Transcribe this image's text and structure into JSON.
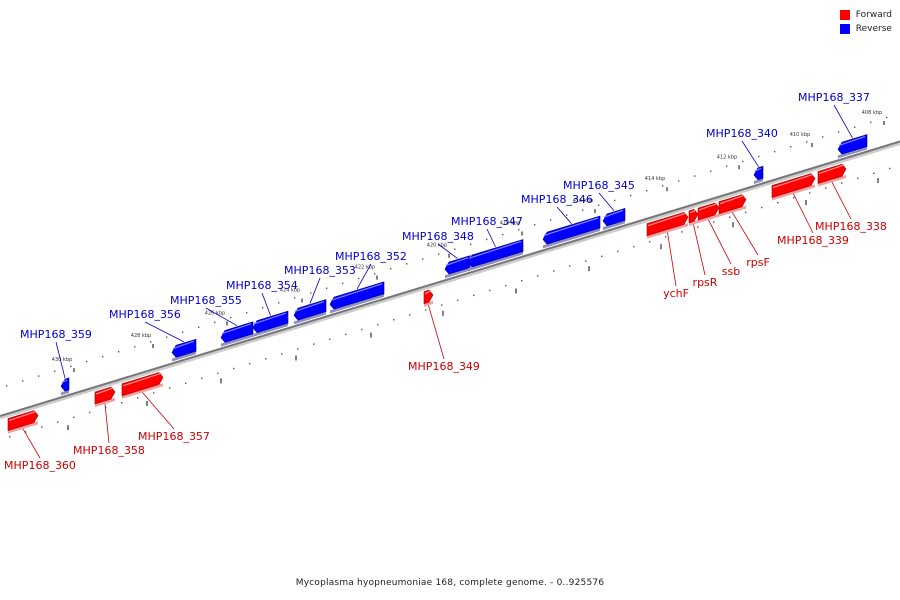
{
  "legend": {
    "items": [
      {
        "label": "Forward",
        "color": "#ff0000"
      },
      {
        "label": "Reverse",
        "color": "#0000ff"
      }
    ]
  },
  "colors": {
    "forward": "#ff0000",
    "reverse": "#0000ff",
    "backbone": "#777777",
    "forward_label": "#cc0000",
    "reverse_label": "#0000cc"
  },
  "scale_ticks": [
    "430 kbp",
    "428 kbp",
    "426 kbp",
    "424 kbp",
    "422 kbp",
    "420 kbp",
    "418 kbp",
    "416 kbp",
    "414 kbp",
    "412 kbp",
    "410 kbp",
    "408 kbp"
  ],
  "features": [
    {
      "name": "MHP168_360",
      "strand": "forward"
    },
    {
      "name": "MHP168_359",
      "strand": "reverse"
    },
    {
      "name": "MHP168_358",
      "strand": "forward"
    },
    {
      "name": "MHP168_357",
      "strand": "forward"
    },
    {
      "name": "MHP168_356",
      "strand": "reverse"
    },
    {
      "name": "MHP168_355",
      "strand": "reverse"
    },
    {
      "name": "MHP168_354",
      "strand": "reverse"
    },
    {
      "name": "MHP168_353",
      "strand": "reverse"
    },
    {
      "name": "MHP168_352",
      "strand": "reverse"
    },
    {
      "name": "MHP168_349",
      "strand": "forward"
    },
    {
      "name": "MHP168_348",
      "strand": "reverse"
    },
    {
      "name": "MHP168_347",
      "strand": "reverse"
    },
    {
      "name": "MHP168_346",
      "strand": "reverse"
    },
    {
      "name": "MHP168_345",
      "strand": "reverse"
    },
    {
      "name": "ychF",
      "strand": "forward"
    },
    {
      "name": "rpsR",
      "strand": "forward"
    },
    {
      "name": "ssb",
      "strand": "forward"
    },
    {
      "name": "rpsF",
      "strand": "forward"
    },
    {
      "name": "MHP168_340",
      "strand": "reverse"
    },
    {
      "name": "MHP168_339",
      "strand": "forward"
    },
    {
      "name": "MHP168_338",
      "strand": "forward"
    },
    {
      "name": "MHP168_337",
      "strand": "reverse"
    }
  ],
  "caption": "Mycoplasma hyopneumoniae 168, complete genome. - 0..925576"
}
